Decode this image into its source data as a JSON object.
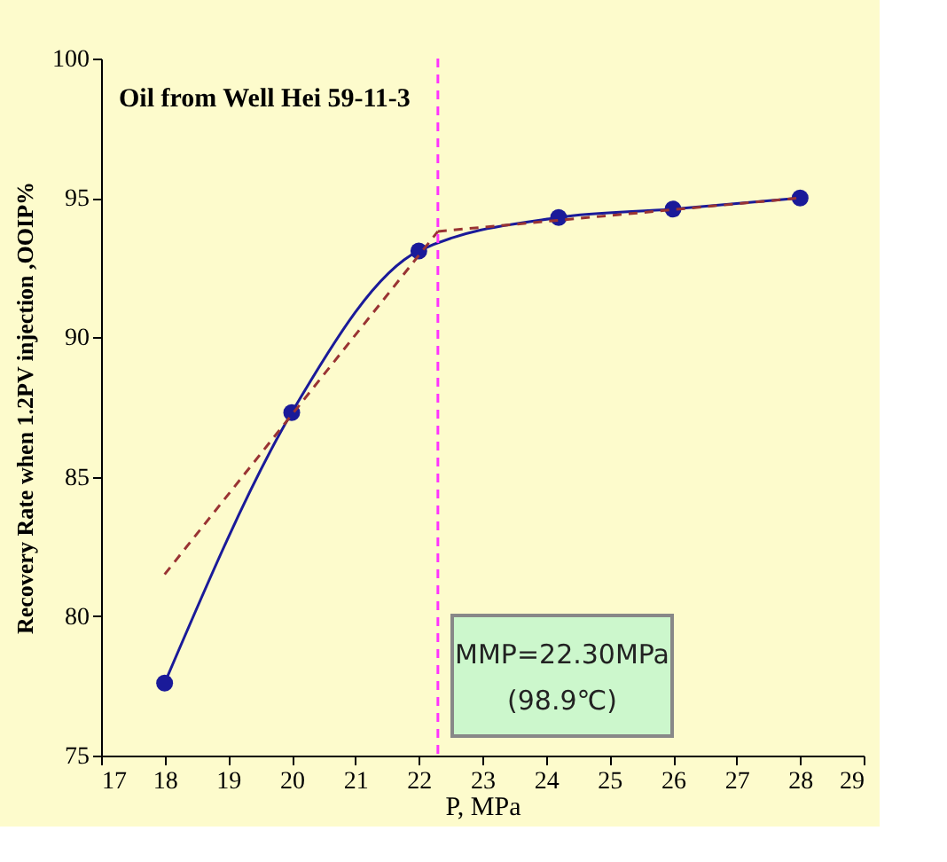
{
  "chart_data": {
    "type": "line",
    "title": "Oil from Well Hei 59-11-3",
    "xlabel": "P, MPa",
    "ylabel": "Recovery Rate when 1.2PV injection ,OOIP%",
    "x": [
      18,
      20,
      22,
      24.2,
      26,
      28
    ],
    "series": [
      {
        "color": "#1a1a99",
        "marker": "circle",
        "line_style": "solid",
        "values": [
          77.6,
          87.3,
          93.1,
          94.3,
          94.6,
          95.0
        ]
      },
      {
        "color": "#993333",
        "marker": "none",
        "line_style": "dashed",
        "x": [
          18,
          22.3
        ],
        "values": [
          81.5,
          93.8
        ]
      },
      {
        "color": "#993333",
        "marker": "none",
        "line_style": "dashed",
        "x": [
          22.3,
          28
        ],
        "values": [
          93.8,
          95.0
        ]
      }
    ],
    "xlim": [
      17,
      29
    ],
    "xticks": [
      17,
      18,
      19,
      20,
      21,
      22,
      23,
      24,
      25,
      26,
      27,
      28,
      29
    ],
    "ylim": [
      75,
      100
    ],
    "yticks": [
      75,
      80,
      85,
      90,
      95,
      100
    ],
    "ref_lines": [
      {
        "axis": "x",
        "value": 22.3,
        "color": "#ff33ff",
        "line_style": "dashed"
      }
    ],
    "annotations": [
      "MMP=22.30MPa",
      "(98.9℃)"
    ],
    "grid": false
  }
}
